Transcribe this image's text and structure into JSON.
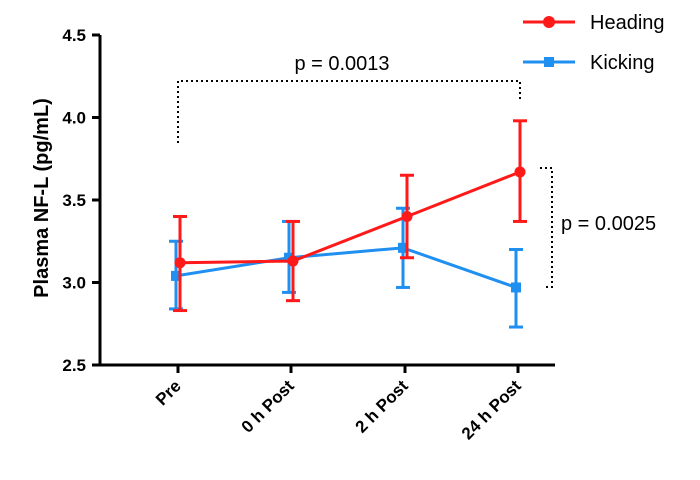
{
  "chart_data": {
    "type": "line",
    "categories": [
      "Pre",
      "0 h Post",
      "2 h Post",
      "24 h Post"
    ],
    "ylabel": "Plasma NF-L (pg/mL)",
    "xlabel": "",
    "ylim": [
      2.5,
      4.5
    ],
    "yticks": [
      "2.5",
      "3.0",
      "3.5",
      "4.0",
      "4.5"
    ],
    "legend_position": "top-right",
    "grid": false,
    "series": [
      {
        "name": "Heading",
        "color": "#ff1a1a",
        "marker": "circle",
        "values": [
          3.12,
          3.13,
          3.4,
          3.67
        ],
        "err_low": [
          2.83,
          2.89,
          3.15,
          3.37
        ],
        "err_high": [
          3.4,
          3.37,
          3.65,
          3.98
        ]
      },
      {
        "name": "Kicking",
        "color": "#1f8ff0",
        "marker": "square",
        "values": [
          3.04,
          3.15,
          3.21,
          2.97
        ],
        "err_low": [
          2.84,
          2.94,
          2.97,
          2.73
        ],
        "err_high": [
          3.25,
          3.37,
          3.45,
          3.2
        ]
      }
    ],
    "annotations": [
      {
        "text": "p = 0.0013",
        "type": "top-bracket",
        "from": "Pre",
        "to": "24 h Post"
      },
      {
        "text": "p = 0.0025",
        "type": "side-bracket",
        "at": "24 h Post"
      }
    ]
  }
}
